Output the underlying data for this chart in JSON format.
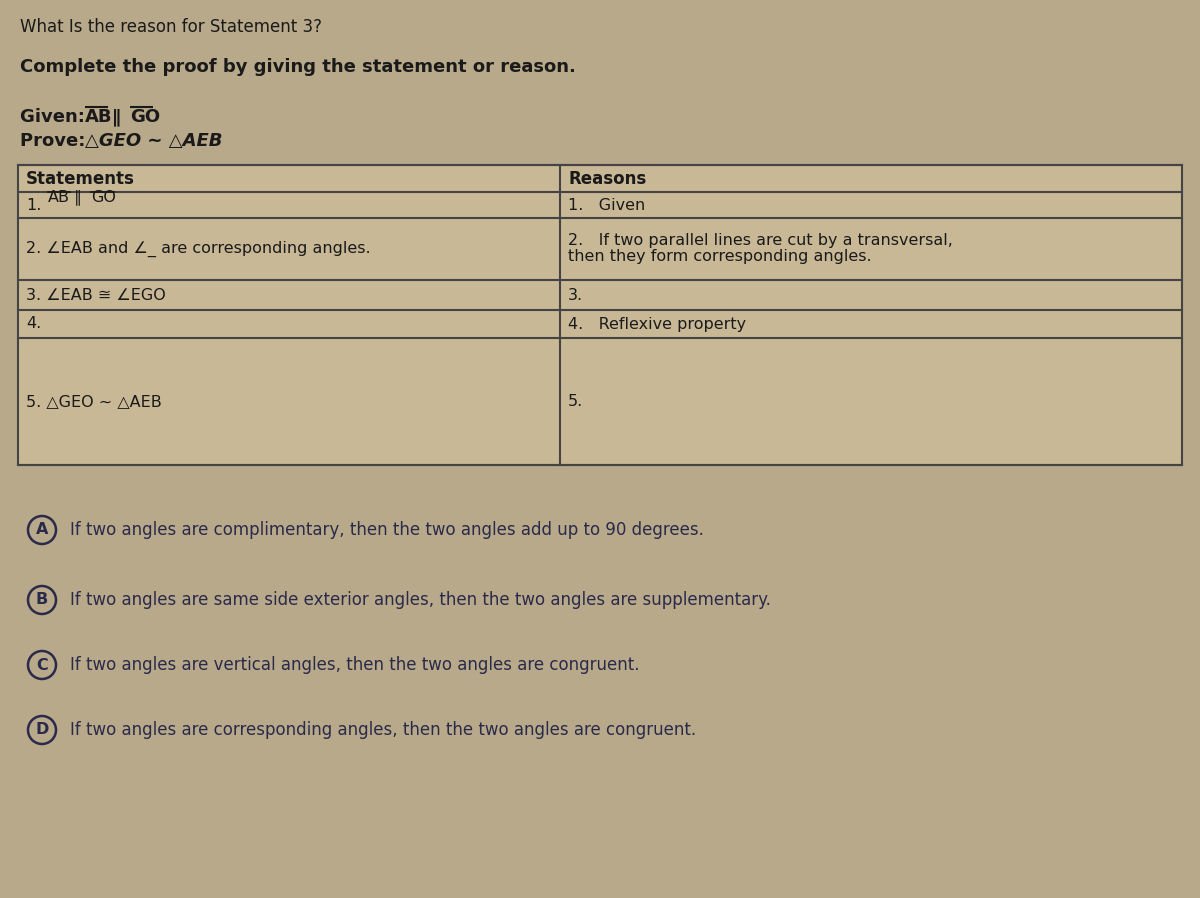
{
  "title_question": "What Is the reason for Statement 3?",
  "instruction": "Complete the proof by giving the statement or reason.",
  "given_line1": "Given: AB ∥ GO",
  "prove_line": "Prove: △GEO ~ △AEB",
  "bg_color": "#b8a98a",
  "table_bg_light": "#c8b896",
  "table_bg_dark": "#b8a882",
  "table_border_color": "#444444",
  "statements_col": [
    "Statements",
    "1.̅A̅B̅ ∥ G̅O̅",
    "2. ∠EAB and ∠_ are corresponding angles.",
    "3. ∠EAB ≅ ∠EGO",
    "4.",
    "5. △GEO ~ △AEB"
  ],
  "reasons_col": [
    "Reasons",
    "1.   Given",
    "2.   If two parallel lines are cut by a transversal,\n     then they form corresponding angles.",
    "3.",
    "4.   Reflexive property",
    "5."
  ],
  "choices": [
    {
      "label": "A",
      "text": "If two angles are complimentary, then the two angles add up to 90 degrees."
    },
    {
      "label": "B",
      "text": "If two angles are same side exterior angles, then the two angles are supplementary."
    },
    {
      "label": "C",
      "text": "If two angles are vertical angles, then the two angles are congruent."
    },
    {
      "label": "D",
      "text": "If two angles are corresponding angles, then the two angles are congruent."
    }
  ],
  "text_color": "#1a1a1a",
  "choice_text_color": "#2a2a4a",
  "title_fontsize": 12,
  "instruction_fontsize": 13,
  "given_prove_fontsize": 13,
  "table_header_fontsize": 12,
  "table_content_fontsize": 11.5,
  "choice_fontsize": 12
}
